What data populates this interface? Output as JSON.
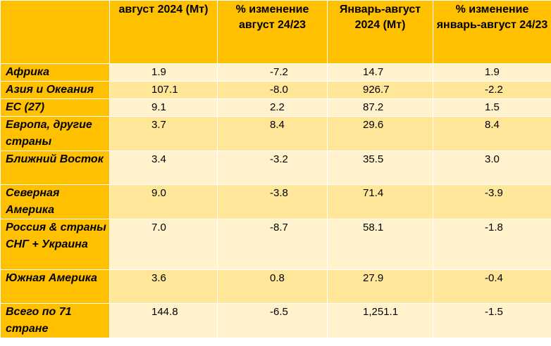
{
  "table": {
    "headers": [
      "",
      "август 2024 (Мт)",
      "% изменение август 24/23",
      "Январь-август 2024 (Мт)",
      "% изменение январь-август 24/23"
    ],
    "rows": [
      {
        "region": "Африка",
        "aug_2024": "1.9",
        "aug_change": "-7.2",
        "jan_aug_2024": "14.7",
        "jan_aug_change": "1.9"
      },
      {
        "region": "Азия и Океания",
        "aug_2024": "107.1",
        "aug_change": "-8.0",
        "jan_aug_2024": "926.7",
        "jan_aug_change": "-2.2"
      },
      {
        "region": "ЕС (27)",
        "aug_2024": "9.1",
        "aug_change": "2.2",
        "jan_aug_2024": "87.2",
        "jan_aug_change": "1.5"
      },
      {
        "region": "Европа, другие страны",
        "aug_2024": "3.7",
        "aug_change": "8.4",
        "jan_aug_2024": "29.6",
        "jan_aug_change": "8.4"
      },
      {
        "region": "Ближний Восток",
        "aug_2024": "3.4",
        "aug_change": "-3.2",
        "jan_aug_2024": "35.5",
        "jan_aug_change": "3.0"
      },
      {
        "region": "Северная Америка",
        "aug_2024": "9.0",
        "aug_change": "-3.8",
        "jan_aug_2024": "71.4",
        "jan_aug_change": "-3.9"
      },
      {
        "region": "Россия & страны СНГ + Украина",
        "aug_2024": "7.0",
        "aug_change": "-8.7",
        "jan_aug_2024": "58.1",
        "jan_aug_change": "-1.8"
      },
      {
        "region": "Южная Америка",
        "aug_2024": "3.6",
        "aug_change": "0.8",
        "jan_aug_2024": "27.9",
        "jan_aug_change": "-0.4"
      },
      {
        "region": "Всего по 71 стране",
        "aug_2024": "144.8",
        "aug_change": "-6.5",
        "jan_aug_2024": "1,251.1",
        "jan_aug_change": "-1.5"
      }
    ]
  },
  "colors": {
    "header_bg": "#ffc000",
    "row_light": "#fff2cc",
    "row_mid": "#ffe699"
  }
}
